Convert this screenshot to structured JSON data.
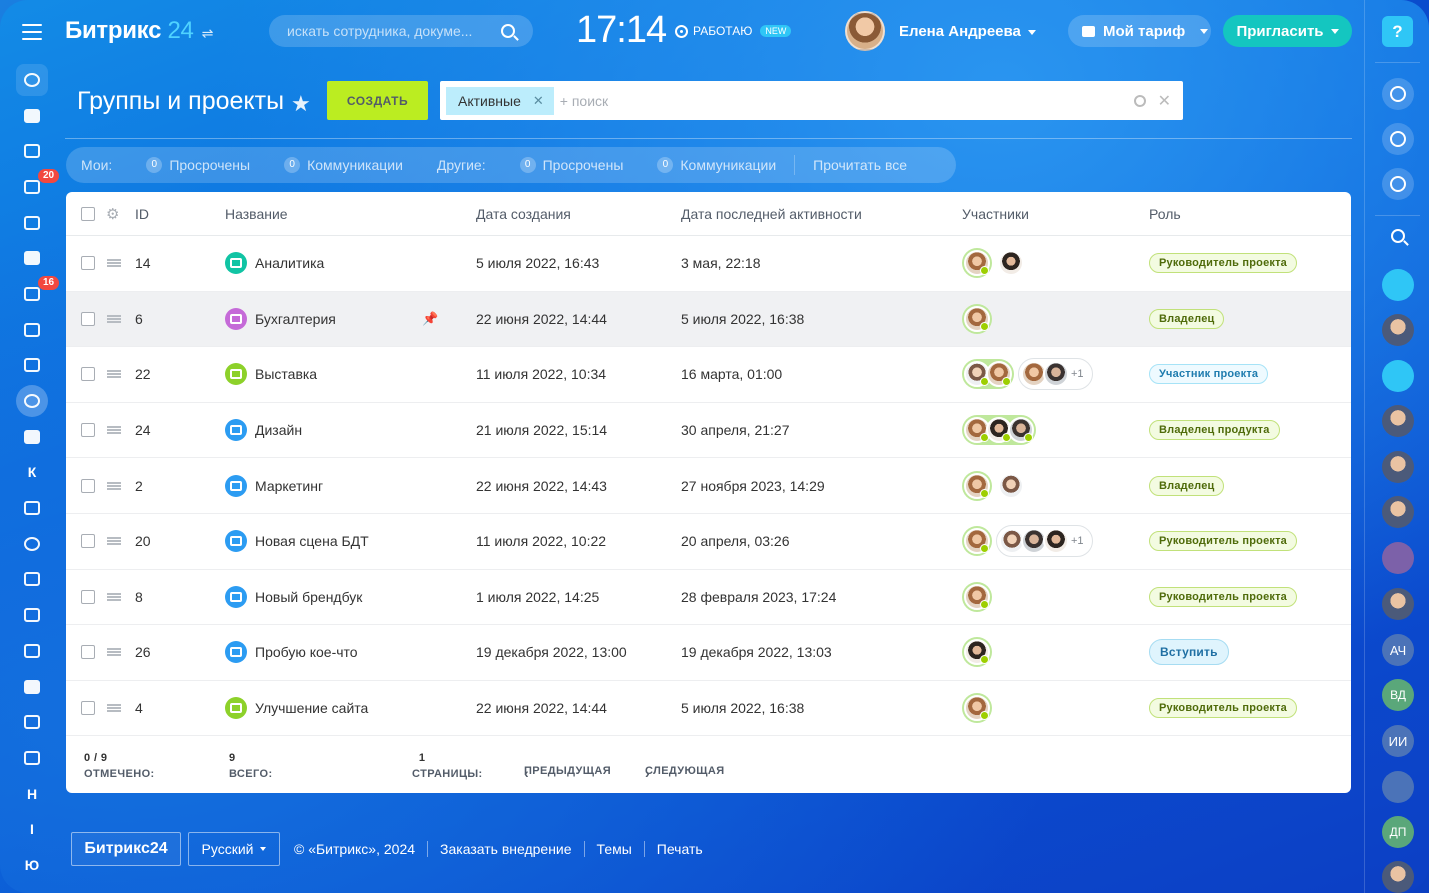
{
  "header": {
    "logo_text": "Битрикс",
    "logo_number": "24",
    "search_placeholder": "искать сотрудника, докуме...",
    "clock": "17:14",
    "work_status": "РАБОТАЮ",
    "work_badge": "NEW",
    "user_name": "Елена Андреева",
    "tariff_label": "Мой тариф",
    "invite_label": "Пригласить"
  },
  "left_nav": {
    "badges": {
      "tasks": "20",
      "feed": "16"
    },
    "letters": [
      "К",
      "Н",
      "I",
      "Ю"
    ]
  },
  "page": {
    "title": "Группы и проекты",
    "create_label": "СОЗДАТЬ",
    "filter_tag": "Активные",
    "filter_placeholder": "+ поиск"
  },
  "counters": {
    "mine_label": "Мои:",
    "others_label": "Другие:",
    "overdue_label": "Просрочены",
    "comm_label": "Коммуникации",
    "zero": "0",
    "read_all": "Прочитать все"
  },
  "table": {
    "columns": {
      "id": "ID",
      "name": "Название",
      "created": "Дата создания",
      "activity": "Дата последней активности",
      "members": "Участники",
      "role": "Роль"
    },
    "rows": [
      {
        "id": "14",
        "name": "Аналитика",
        "created": "5 июля 2022, 16:43",
        "activity": "3 мая, 22:18",
        "role": "Руководитель проекта",
        "icon_color": "#11c4a4"
      },
      {
        "id": "6",
        "name": "Бухгалтерия",
        "created": "22 июня 2022, 14:44",
        "activity": "5 июля 2022, 16:38",
        "role": "Владелец",
        "icon_color": "#c56ad8"
      },
      {
        "id": "22",
        "name": "Выставка",
        "created": "11 июля 2022, 10:34",
        "activity": "16 марта, 01:00",
        "role": "Участник проекта",
        "icon_color": "#8dd12a"
      },
      {
        "id": "24",
        "name": "Дизайн",
        "created": "21 июля 2022, 15:14",
        "activity": "30 апреля, 21:27",
        "role": "Владелец продукта",
        "icon_color": "#2c9cf2"
      },
      {
        "id": "2",
        "name": "Маркетинг",
        "created": "22 июня 2022, 14:43",
        "activity": "27 ноября 2023, 14:29",
        "role": "Владелец",
        "icon_color": "#2c9cf2"
      },
      {
        "id": "20",
        "name": "Новая сцена БДТ",
        "created": "11 июля 2022, 10:22",
        "activity": "20 апреля, 03:26",
        "role": "Руководитель проекта",
        "icon_color": "#2c9cf2"
      },
      {
        "id": "8",
        "name": "Новый брендбук",
        "created": "1 июля 2022, 14:25",
        "activity": "28 февраля 2023, 17:24",
        "role": "Руководитель проекта",
        "icon_color": "#2c9cf2"
      },
      {
        "id": "26",
        "name": "Пробую кое-что",
        "created": "19 декабря 2022, 13:00",
        "activity": "19 декабря 2022, 13:03",
        "role": "Вступить",
        "icon_color": "#2c9cf2"
      },
      {
        "id": "4",
        "name": "Улучшение сайта",
        "created": "22 июня 2022, 14:44",
        "activity": "5 июля 2022, 16:38",
        "role": "Руководитель проекта",
        "icon_color": "#8dd12a"
      }
    ],
    "plus_more": "+1"
  },
  "footer_grid": {
    "checked_label": "ОТМЕЧЕНО:",
    "checked_value": "0 / 9",
    "total_label": "ВСЕГО:",
    "total_value": "9",
    "pages_label": "СТРАНИЦЫ:",
    "pages_value": "1",
    "prev": "ПРЕДЫДУЩАЯ",
    "next": "СЛЕДУЮЩАЯ"
  },
  "bottom": {
    "logo": "Битрикс24",
    "lang": "Русский",
    "copyright": "© «Битрикс», 2024",
    "order": "Заказать внедрение",
    "themes": "Темы",
    "print": "Печать"
  },
  "right_bar": {
    "help": "?",
    "initials": [
      "АЧ",
      "ВД",
      "ИИ",
      "ДП"
    ]
  }
}
